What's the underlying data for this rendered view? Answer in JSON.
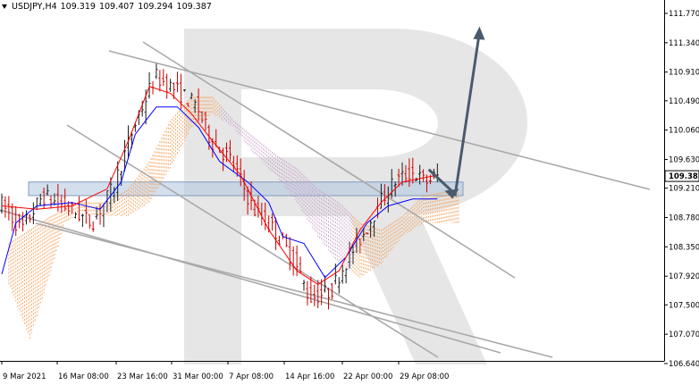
{
  "header": {
    "symbol": "USDJPY,H4",
    "open": "109.319",
    "high": "109.407",
    "low": "109.294",
    "close": "109.387"
  },
  "colors": {
    "bull_candle": "#1a1a1a",
    "bear_candle": "#cc0000",
    "tenkan_line": "#ff0000",
    "kijun_line": "#0000ff",
    "cloud_bullish": "#f4a460",
    "cloud_bearish": "#c8a2c8",
    "channel_lines": "#a9a9a9",
    "support_zone": "#b0c4de",
    "forecast_arrow": "#4a5a6e",
    "watermark": "#e6e6e6"
  },
  "chart_data": {
    "type": "candlestick",
    "symbol": "USDJPY",
    "timeframe": "H4",
    "last_price": "109.387",
    "y_ticks": [
      "111.770",
      "111.340",
      "110.910",
      "110.490",
      "110.060",
      "109.630",
      "109.210",
      "108.780",
      "108.350",
      "107.920",
      "107.500",
      "107.070",
      "106.640"
    ],
    "y_range": [
      106.64,
      111.77
    ],
    "x_ticks": [
      "9 Mar 2021",
      "16 Mar 08:00",
      "23 Mar 16:00",
      "31 Mar 00:00",
      "7 Apr 08:00",
      "14 Apr 16:00",
      "22 Apr 00:00",
      "29 Apr 08:00"
    ],
    "price_path": [
      [
        0,
        109.0
      ],
      [
        6,
        108.6
      ],
      [
        12,
        109.1
      ],
      [
        20,
        108.9
      ],
      [
        26,
        108.7
      ],
      [
        32,
        109.2
      ],
      [
        38,
        110.1
      ],
      [
        44,
        110.85
      ],
      [
        50,
        110.65
      ],
      [
        56,
        110.4
      ],
      [
        60,
        109.9
      ],
      [
        66,
        109.6
      ],
      [
        72,
        108.9
      ],
      [
        78,
        108.6
      ],
      [
        84,
        108.1
      ],
      [
        88,
        107.6
      ],
      [
        94,
        107.7
      ],
      [
        98,
        108.1
      ],
      [
        104,
        108.6
      ],
      [
        108,
        109.0
      ],
      [
        112,
        109.3
      ],
      [
        117,
        109.45
      ],
      [
        121,
        109.3
      ],
      [
        124,
        109.39
      ]
    ],
    "tenkan_sen": [
      [
        0,
        108.95
      ],
      [
        10,
        108.9
      ],
      [
        20,
        108.95
      ],
      [
        30,
        109.2
      ],
      [
        36,
        109.9
      ],
      [
        42,
        110.7
      ],
      [
        48,
        110.6
      ],
      [
        54,
        110.3
      ],
      [
        60,
        109.9
      ],
      [
        68,
        109.4
      ],
      [
        76,
        108.6
      ],
      [
        84,
        108.0
      ],
      [
        90,
        107.8
      ],
      [
        96,
        108.0
      ],
      [
        102,
        108.6
      ],
      [
        108,
        109.0
      ],
      [
        114,
        109.3
      ],
      [
        119,
        109.35
      ],
      [
        124,
        109.4
      ]
    ],
    "kijun_sen": [
      [
        0,
        107.95
      ],
      [
        4,
        108.7
      ],
      [
        10,
        108.95
      ],
      [
        20,
        109.0
      ],
      [
        28,
        108.9
      ],
      [
        34,
        109.3
      ],
      [
        38,
        110.0
      ],
      [
        44,
        110.4
      ],
      [
        50,
        110.4
      ],
      [
        56,
        110.1
      ],
      [
        62,
        109.6
      ],
      [
        70,
        109.3
      ],
      [
        76,
        109.0
      ],
      [
        80,
        108.5
      ],
      [
        86,
        108.4
      ],
      [
        92,
        107.9
      ],
      [
        98,
        108.2
      ],
      [
        104,
        108.7
      ],
      [
        110,
        108.95
      ],
      [
        117,
        109.05
      ],
      [
        124,
        109.05
      ]
    ],
    "cloud_lower_bound": [
      [
        2,
        107.8
      ],
      [
        8,
        107.0
      ],
      [
        14,
        108.0
      ],
      [
        18,
        108.7
      ],
      [
        22,
        108.85
      ],
      [
        30,
        108.8
      ],
      [
        36,
        108.8
      ],
      [
        42,
        109.0
      ],
      [
        48,
        109.5
      ],
      [
        54,
        110.1
      ],
      [
        60,
        110.3
      ],
      [
        66,
        110.1
      ],
      [
        72,
        109.7
      ],
      [
        78,
        109.4
      ],
      [
        84,
        109.0
      ],
      [
        90,
        108.5
      ],
      [
        96,
        108.1
      ],
      [
        102,
        107.9
      ],
      [
        108,
        108.1
      ],
      [
        114,
        108.5
      ],
      [
        120,
        108.7
      ],
      [
        130,
        108.7
      ]
    ],
    "cloud_upper_bound": [
      [
        2,
        108.4
      ],
      [
        8,
        108.6
      ],
      [
        14,
        108.8
      ],
      [
        18,
        108.9
      ],
      [
        22,
        109.0
      ],
      [
        30,
        109.0
      ],
      [
        36,
        109.2
      ],
      [
        42,
        109.6
      ],
      [
        48,
        110.2
      ],
      [
        54,
        110.55
      ],
      [
        60,
        110.55
      ],
      [
        66,
        110.2
      ],
      [
        72,
        109.95
      ],
      [
        78,
        109.7
      ],
      [
        84,
        109.5
      ],
      [
        90,
        109.2
      ],
      [
        96,
        109.0
      ],
      [
        102,
        108.7
      ],
      [
        108,
        108.6
      ],
      [
        114,
        108.8
      ],
      [
        120,
        109.1
      ],
      [
        130,
        109.2
      ]
    ],
    "support_zone": [
      109.1,
      109.3
    ],
    "forecast_arrow": [
      [
        119,
        109.3
      ],
      [
        124,
        109.12
      ],
      [
        136,
        111.5
      ]
    ]
  }
}
